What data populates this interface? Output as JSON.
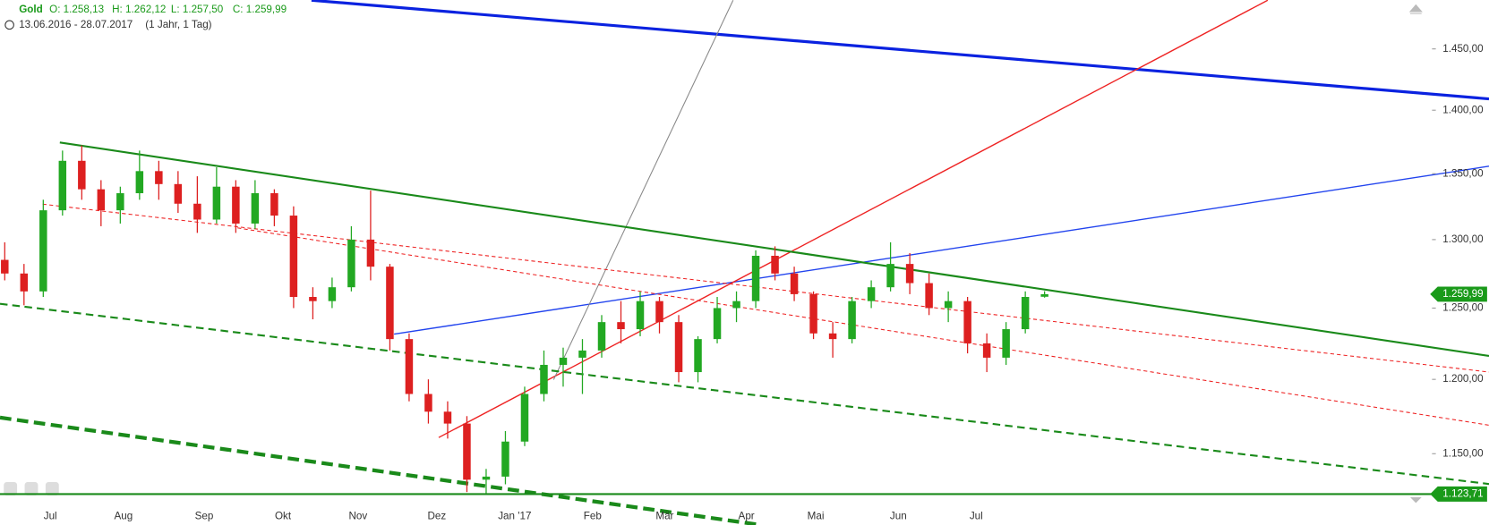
{
  "chart_data": {
    "type": "candlestick",
    "title": "Gold",
    "ohlc_labels": [
      "O: 1.258,13",
      "H: 1.262,12",
      "L: 1.257,50",
      "C: 1.259,99"
    ],
    "date_range": "13.06.2016 - 28.07.2017",
    "period": "(1 Jahr, 1 Tag)",
    "x_labels": [
      "Jul",
      "Aug",
      "Sep",
      "Okt",
      "Nov",
      "Dez",
      "Jan '17",
      "Feb",
      "Mär",
      "Apr",
      "Mai",
      "Jun",
      "Jul"
    ],
    "open": [
      1285,
      1275,
      1262,
      1322,
      1360,
      1338,
      1322,
      1335,
      1352,
      1342,
      1327,
      1315,
      1340,
      1312,
      1335,
      1318,
      1258,
      1255,
      1265,
      1300,
      1280,
      1228,
      1190,
      1178,
      1170,
      1133,
      1135,
      1158,
      1190,
      1210,
      1215,
      1220,
      1240,
      1235,
      1255,
      1240,
      1205,
      1228,
      1250,
      1255,
      1288,
      1275,
      1260,
      1232,
      1228,
      1255,
      1265,
      1282,
      1268,
      1250,
      1255,
      1225,
      1215,
      1235,
      1258.13
    ],
    "high": [
      1298,
      1282,
      1330,
      1368,
      1372,
      1345,
      1340,
      1368,
      1360,
      1352,
      1348,
      1355,
      1345,
      1345,
      1338,
      1325,
      1265,
      1272,
      1310,
      1337,
      1282,
      1232,
      1200,
      1185,
      1175,
      1140,
      1165,
      1195,
      1220,
      1222,
      1228,
      1245,
      1255,
      1262,
      1258,
      1245,
      1230,
      1258,
      1262,
      1292,
      1295,
      1280,
      1262,
      1240,
      1258,
      1270,
      1298,
      1290,
      1275,
      1262,
      1258,
      1232,
      1240,
      1262,
      1262.12
    ],
    "low": [
      1270,
      1252,
      1258,
      1318,
      1330,
      1310,
      1312,
      1330,
      1330,
      1320,
      1305,
      1312,
      1305,
      1308,
      1310,
      1250,
      1242,
      1250,
      1262,
      1270,
      1220,
      1185,
      1170,
      1160,
      1125,
      1124,
      1130,
      1155,
      1185,
      1195,
      1190,
      1215,
      1225,
      1230,
      1232,
      1198,
      1198,
      1225,
      1240,
      1250,
      1270,
      1255,
      1228,
      1215,
      1225,
      1250,
      1262,
      1260,
      1245,
      1240,
      1218,
      1205,
      1210,
      1232,
      1257.5
    ],
    "close": [
      1275,
      1262,
      1322,
      1360,
      1338,
      1322,
      1335,
      1352,
      1342,
      1327,
      1315,
      1340,
      1312,
      1335,
      1318,
      1258,
      1255,
      1265,
      1300,
      1280,
      1228,
      1190,
      1178,
      1170,
      1133,
      1135,
      1158,
      1190,
      1210,
      1215,
      1220,
      1240,
      1235,
      1255,
      1240,
      1205,
      1228,
      1250,
      1255,
      1288,
      1275,
      1260,
      1232,
      1228,
      1255,
      1265,
      1282,
      1268,
      1250,
      1255,
      1225,
      1215,
      1235,
      1258,
      1259.99
    ],
    "up_color": "#22a822",
    "down_color": "#dd2020",
    "log_scale": true,
    "ylim": [
      1118,
      1491
    ],
    "yticks": [
      {
        "value": 1150,
        "label": "1.150,00"
      },
      {
        "value": 1200,
        "label": "1.200,00"
      },
      {
        "value": 1250,
        "label": "1.250,00"
      },
      {
        "value": 1300,
        "label": "1.300,00"
      },
      {
        "value": 1350,
        "label": "1.350,00"
      },
      {
        "value": 1400,
        "label": "1.400,00"
      },
      {
        "value": 1450,
        "label": "1.450,00"
      }
    ],
    "price_tags": [
      {
        "value": 1259.99,
        "label": "1.259,99"
      },
      {
        "value": 1123.71,
        "label": "1.123,71"
      }
    ]
  }
}
